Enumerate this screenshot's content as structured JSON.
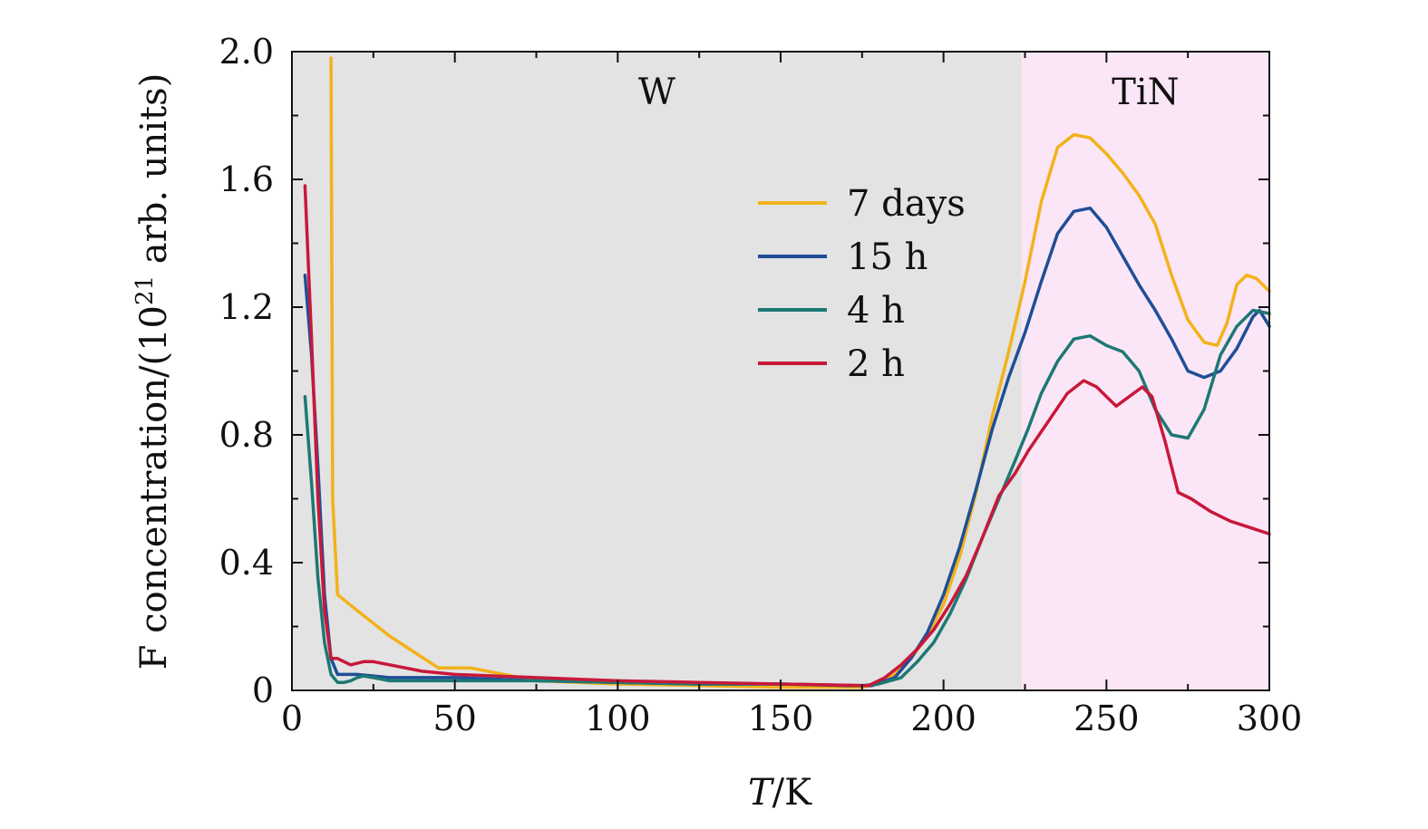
{
  "chart_data": {
    "type": "line",
    "title": "",
    "xlabel": {
      "italic": "T",
      "rest": "/K"
    },
    "ylabel": {
      "pre": "F concentration/(10",
      "sup": "21",
      "post": " arb. units)"
    },
    "xlim": [
      0,
      300
    ],
    "ylim": [
      0,
      2.0
    ],
    "x_ticks": [
      0,
      50,
      100,
      150,
      200,
      250,
      300
    ],
    "x_tick_labels": [
      "0",
      "50",
      "100",
      "150",
      "200",
      "250",
      "300"
    ],
    "y_ticks": [
      0,
      0.4,
      0.8,
      1.2,
      1.6,
      2.0
    ],
    "y_tick_labels": [
      "0",
      "0.4",
      "0.8",
      "1.2",
      "1.6",
      "2.0"
    ],
    "grid": false,
    "legend_position": "upper-center-right",
    "regions": [
      {
        "name": "W",
        "x_start": 0,
        "x_end": 224,
        "color": "#e3e3e3"
      },
      {
        "name": "TiN",
        "x_start": 224,
        "x_end": 300,
        "color": "#fbe6f7"
      }
    ],
    "series": [
      {
        "name": "7 days",
        "color": "#f2b21a",
        "x": [
          12,
          12.5,
          14,
          20,
          30,
          45,
          55,
          65,
          75,
          100,
          125,
          150,
          175,
          180,
          185,
          190,
          195,
          200,
          205,
          210,
          215,
          220,
          225,
          230,
          235,
          240,
          245,
          250,
          255,
          260,
          265,
          270,
          275,
          280,
          284,
          287,
          290,
          293,
          296,
          300
        ],
        "values": [
          1.98,
          0.6,
          0.3,
          0.25,
          0.17,
          0.07,
          0.07,
          0.05,
          0.03,
          0.02,
          0.015,
          0.01,
          0.01,
          0.02,
          0.05,
          0.1,
          0.17,
          0.27,
          0.42,
          0.62,
          0.86,
          1.06,
          1.28,
          1.53,
          1.7,
          1.74,
          1.73,
          1.68,
          1.62,
          1.55,
          1.46,
          1.3,
          1.16,
          1.09,
          1.08,
          1.15,
          1.27,
          1.3,
          1.29,
          1.25
        ]
      },
      {
        "name": "15 h",
        "color": "#1f4e97",
        "x": [
          4,
          6,
          8,
          10,
          12,
          14,
          20,
          30,
          50,
          75,
          100,
          125,
          150,
          170,
          178,
          185,
          190,
          195,
          200,
          205,
          210,
          215,
          220,
          225,
          230,
          235,
          240,
          245,
          250,
          255,
          260,
          265,
          270,
          275,
          280,
          285,
          290,
          295,
          297,
          300
        ],
        "values": [
          1.3,
          1.05,
          0.7,
          0.3,
          0.1,
          0.05,
          0.05,
          0.04,
          0.04,
          0.03,
          0.025,
          0.02,
          0.02,
          0.015,
          0.015,
          0.04,
          0.1,
          0.18,
          0.3,
          0.45,
          0.63,
          0.82,
          0.98,
          1.12,
          1.28,
          1.43,
          1.5,
          1.51,
          1.45,
          1.36,
          1.27,
          1.19,
          1.1,
          1.0,
          0.98,
          1.0,
          1.07,
          1.17,
          1.19,
          1.14
        ]
      },
      {
        "name": "4 h",
        "color": "#1d7874",
        "x": [
          4,
          6,
          8,
          10,
          12,
          14,
          16,
          18,
          20,
          22,
          25,
          30,
          50,
          75,
          100,
          125,
          150,
          175,
          180,
          187,
          192,
          197,
          202,
          207,
          212,
          217,
          222,
          226,
          230,
          235,
          240,
          245,
          250,
          255,
          260,
          265,
          270,
          275,
          280,
          285,
          290,
          295,
          300
        ],
        "values": [
          0.92,
          0.65,
          0.35,
          0.15,
          0.05,
          0.025,
          0.025,
          0.03,
          0.04,
          0.045,
          0.04,
          0.03,
          0.03,
          0.03,
          0.025,
          0.02,
          0.02,
          0.015,
          0.02,
          0.04,
          0.09,
          0.15,
          0.24,
          0.35,
          0.48,
          0.6,
          0.72,
          0.82,
          0.93,
          1.03,
          1.1,
          1.11,
          1.08,
          1.06,
          1.0,
          0.88,
          0.8,
          0.79,
          0.88,
          1.05,
          1.14,
          1.19,
          1.18
        ]
      },
      {
        "name": "2 h",
        "color": "#c8183a",
        "x": [
          4,
          6,
          8,
          10,
          12,
          14,
          18,
          22,
          25,
          30,
          40,
          50,
          75,
          100,
          125,
          150,
          177,
          182,
          187,
          192,
          197,
          202,
          207,
          212,
          217,
          222,
          226,
          232,
          238,
          243,
          247,
          250,
          253,
          257,
          261,
          264,
          268,
          272,
          276,
          282,
          288,
          294,
          300
        ],
        "values": [
          1.58,
          1.1,
          0.6,
          0.25,
          0.1,
          0.1,
          0.08,
          0.09,
          0.09,
          0.08,
          0.06,
          0.05,
          0.04,
          0.03,
          0.025,
          0.02,
          0.015,
          0.04,
          0.08,
          0.13,
          0.19,
          0.27,
          0.36,
          0.48,
          0.61,
          0.68,
          0.75,
          0.84,
          0.93,
          0.97,
          0.95,
          0.92,
          0.89,
          0.92,
          0.95,
          0.92,
          0.78,
          0.62,
          0.6,
          0.56,
          0.53,
          0.51,
          0.49
        ]
      }
    ]
  }
}
